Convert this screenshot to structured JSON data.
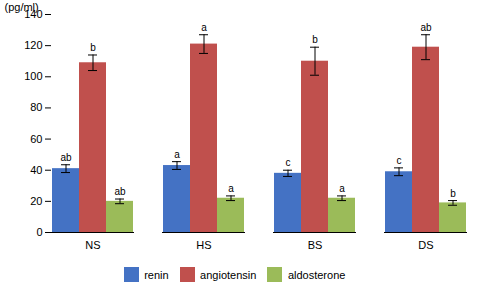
{
  "chart_data": {
    "type": "bar",
    "categories": [
      "NS",
      "HS",
      "BS",
      "DS"
    ],
    "series": [
      {
        "name": "renin",
        "color": "#4472c4",
        "values": [
          41,
          43,
          38,
          39
        ],
        "errors": [
          2.5,
          2.5,
          2.0,
          2.5
        ],
        "labels": [
          "ab",
          "a",
          "c",
          "c"
        ]
      },
      {
        "name": "angiotensin",
        "color": "#c0504d",
        "values": [
          109,
          121,
          110,
          119
        ],
        "errors": [
          5,
          6,
          9,
          8
        ],
        "labels": [
          "b",
          "a",
          "b",
          "ab"
        ]
      },
      {
        "name": "aldosterone",
        "color": "#9bbb59",
        "values": [
          20,
          22,
          22,
          19
        ],
        "errors": [
          1.5,
          1.5,
          1.5,
          1.5
        ],
        "labels": [
          "ab",
          "a",
          "a",
          "b"
        ]
      }
    ],
    "ylabel": "(pg/ml)",
    "ylim": [
      0,
      140
    ],
    "yticks": [
      0,
      20,
      40,
      60,
      80,
      100,
      120,
      140
    ],
    "grid": false,
    "legend": "bottom"
  }
}
